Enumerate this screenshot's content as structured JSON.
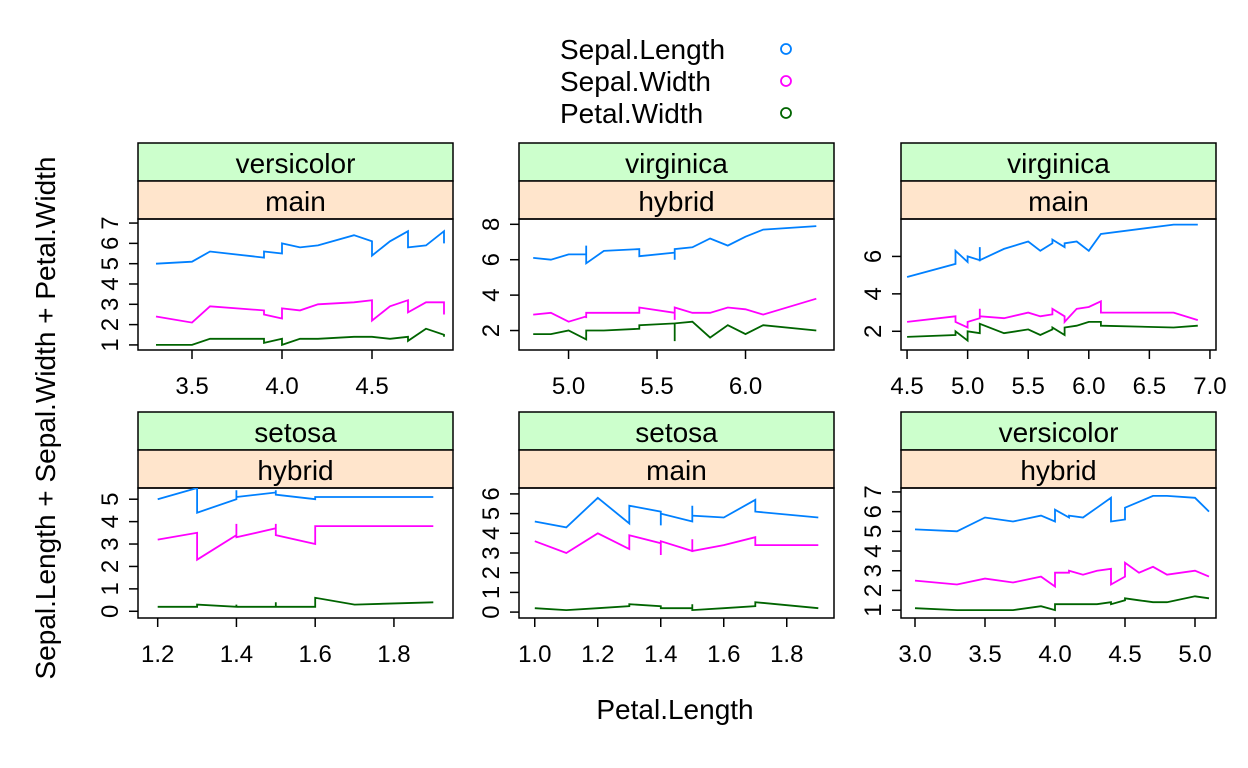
{
  "chart_data": {
    "type": "line",
    "xlabel": "Petal.Length",
    "ylabel": "Sepal.Length + Sepal.Width + Petal.Width",
    "legend": {
      "placement": "top-center",
      "entries": [
        {
          "name": "Sepal.Length",
          "color": "#0080ff"
        },
        {
          "name": "Sepal.Width",
          "color": "#ff00ff"
        },
        {
          "name": "Petal.Width",
          "color": "#006400"
        }
      ]
    },
    "strip_colors": {
      "species": "#ccffcc",
      "group": "#ffe5cc"
    },
    "panels": [
      {
        "species": "versicolor",
        "group": "main",
        "xlim": [
          3.2,
          4.95
        ],
        "xticks": [
          3.5,
          4.0,
          4.5
        ],
        "ylim": [
          0.75,
          7.2
        ],
        "yticks": [
          1,
          2,
          3,
          4,
          5,
          6,
          7
        ],
        "series": [
          {
            "name": "Sepal.Length",
            "x": [
              3.3,
              3.5,
              3.6,
              3.9,
              3.9,
              4.0,
              4.0,
              4.1,
              4.2,
              4.4,
              4.5,
              4.5,
              4.6,
              4.7,
              4.7,
              4.8,
              4.9,
              4.9
            ],
            "y": [
              5.0,
              5.1,
              5.6,
              5.3,
              5.6,
              5.5,
              6.0,
              5.8,
              5.9,
              6.4,
              6.1,
              5.4,
              6.1,
              6.6,
              5.8,
              5.9,
              6.6,
              6.0
            ]
          },
          {
            "name": "Sepal.Width",
            "x": [
              3.3,
              3.5,
              3.6,
              3.9,
              3.9,
              4.0,
              4.0,
              4.1,
              4.2,
              4.4,
              4.5,
              4.5,
              4.6,
              4.7,
              4.7,
              4.8,
              4.9,
              4.9
            ],
            "y": [
              2.4,
              2.1,
              2.9,
              2.7,
              2.5,
              2.3,
              2.8,
              2.7,
              3.0,
              3.1,
              3.2,
              2.2,
              2.9,
              3.2,
              2.6,
              3.1,
              3.1,
              2.5
            ]
          },
          {
            "name": "Petal.Width",
            "x": [
              3.3,
              3.5,
              3.6,
              3.9,
              3.9,
              4.0,
              4.0,
              4.1,
              4.2,
              4.4,
              4.5,
              4.5,
              4.6,
              4.7,
              4.7,
              4.8,
              4.9,
              4.9
            ],
            "y": [
              1.0,
              1.0,
              1.3,
              1.3,
              1.1,
              1.3,
              1.0,
              1.3,
              1.3,
              1.4,
              1.4,
              1.4,
              1.3,
              1.4,
              1.2,
              1.8,
              1.5,
              1.4
            ]
          }
        ]
      },
      {
        "species": "virginica",
        "group": "hybrid",
        "xlim": [
          4.72,
          6.5
        ],
        "xticks": [
          5.0,
          5.5,
          6.0
        ],
        "ylim": [
          0.9,
          8.3
        ],
        "yticks": [
          2,
          4,
          6,
          8
        ],
        "series": [
          {
            "name": "Sepal.Length",
            "x": [
              4.8,
              4.9,
              5.0,
              5.1,
              5.1,
              5.1,
              5.2,
              5.4,
              5.4,
              5.6,
              5.6,
              5.6,
              5.7,
              5.8,
              5.9,
              6.0,
              6.1,
              6.4
            ],
            "y": [
              6.1,
              6.0,
              6.3,
              6.3,
              6.8,
              5.8,
              6.5,
              6.6,
              6.2,
              6.4,
              6.0,
              6.6,
              6.7,
              7.2,
              6.8,
              7.3,
              7.7,
              7.9
            ]
          },
          {
            "name": "Sepal.Width",
            "x": [
              4.8,
              4.9,
              5.0,
              5.1,
              5.1,
              5.1,
              5.2,
              5.4,
              5.4,
              5.6,
              5.6,
              5.6,
              5.7,
              5.8,
              5.9,
              6.0,
              6.1,
              6.4
            ],
            "y": [
              2.9,
              3.0,
              2.5,
              2.8,
              2.7,
              3.0,
              3.0,
              3.0,
              3.3,
              3.0,
              2.6,
              3.3,
              3.0,
              3.0,
              3.3,
              3.2,
              2.9,
              3.8
            ]
          },
          {
            "name": "Petal.Width",
            "x": [
              4.8,
              4.9,
              5.0,
              5.1,
              5.1,
              5.1,
              5.2,
              5.4,
              5.4,
              5.6,
              5.6,
              5.6,
              5.7,
              5.8,
              5.9,
              6.0,
              6.1,
              6.4
            ],
            "y": [
              1.8,
              1.8,
              2.0,
              1.5,
              1.9,
              2.0,
              2.0,
              2.1,
              2.3,
              2.4,
              1.4,
              2.4,
              2.5,
              1.6,
              2.3,
              1.8,
              2.3,
              2.0
            ]
          }
        ]
      },
      {
        "species": "virginica",
        "group": "main",
        "xlim": [
          4.45,
          7.05
        ],
        "xticks": [
          4.5,
          5.0,
          5.5,
          6.0,
          6.5,
          7.0
        ],
        "ylim": [
          1.0,
          8.0
        ],
        "yticks": [
          2,
          4,
          6
        ],
        "series": [
          {
            "name": "Sepal.Length",
            "x": [
              4.5,
              4.9,
              4.9,
              5.0,
              5.0,
              5.1,
              5.1,
              5.1,
              5.3,
              5.5,
              5.6,
              5.7,
              5.7,
              5.8,
              5.8,
              5.9,
              6.0,
              6.1,
              6.1,
              6.7,
              6.9
            ],
            "y": [
              4.9,
              5.6,
              6.3,
              5.7,
              6.0,
              5.8,
              6.5,
              5.8,
              6.4,
              6.8,
              6.3,
              6.7,
              6.9,
              6.5,
              6.7,
              6.8,
              6.3,
              7.2,
              7.2,
              7.7,
              7.7
            ]
          },
          {
            "name": "Sepal.Width",
            "x": [
              4.5,
              4.9,
              4.9,
              5.0,
              5.0,
              5.1,
              5.1,
              5.1,
              5.3,
              5.5,
              5.6,
              5.7,
              5.7,
              5.8,
              5.8,
              5.9,
              6.0,
              6.1,
              6.1,
              6.7,
              6.9
            ],
            "y": [
              2.5,
              2.8,
              2.5,
              2.2,
              2.5,
              2.7,
              3.2,
              2.8,
              2.7,
              3.0,
              2.8,
              2.9,
              3.2,
              2.8,
              2.5,
              3.2,
              3.3,
              3.6,
              3.0,
              3.0,
              2.6
            ]
          },
          {
            "name": "Petal.Width",
            "x": [
              4.5,
              4.9,
              4.9,
              5.0,
              5.0,
              5.1,
              5.1,
              5.1,
              5.3,
              5.5,
              5.6,
              5.7,
              5.7,
              5.8,
              5.8,
              5.9,
              6.0,
              6.1,
              6.1,
              6.7,
              6.9
            ],
            "y": [
              1.7,
              1.8,
              2.0,
              1.5,
              2.0,
              1.9,
              2.3,
              2.4,
              1.9,
              2.1,
              1.8,
              2.1,
              2.2,
              1.8,
              2.2,
              2.3,
              2.5,
              2.5,
              2.3,
              2.2,
              2.3
            ]
          }
        ]
      },
      {
        "species": "setosa",
        "group": "hybrid",
        "xlim": [
          1.15,
          1.95
        ],
        "xticks": [
          1.2,
          1.4,
          1.6,
          1.8
        ],
        "ylim": [
          -0.3,
          5.5
        ],
        "yticks": [
          0,
          1,
          2,
          3,
          4,
          5
        ],
        "series": [
          {
            "name": "Sepal.Length",
            "x": [
              1.2,
              1.3,
              1.3,
              1.4,
              1.4,
              1.4,
              1.5,
              1.5,
              1.5,
              1.6,
              1.6,
              1.7,
              1.9
            ],
            "y": [
              5.0,
              5.5,
              4.4,
              5.0,
              5.4,
              5.1,
              5.3,
              5.4,
              5.2,
              5.0,
              5.1,
              5.1,
              5.1
            ]
          },
          {
            "name": "Sepal.Width",
            "x": [
              1.2,
              1.3,
              1.3,
              1.4,
              1.4,
              1.4,
              1.5,
              1.5,
              1.5,
              1.6,
              1.6,
              1.7,
              1.9
            ],
            "y": [
              3.2,
              3.5,
              2.3,
              3.4,
              3.9,
              3.3,
              3.7,
              3.9,
              3.4,
              3.0,
              3.8,
              3.8,
              3.8
            ]
          },
          {
            "name": "Petal.Width",
            "x": [
              1.2,
              1.3,
              1.3,
              1.4,
              1.4,
              1.4,
              1.5,
              1.5,
              1.5,
              1.6,
              1.6,
              1.7,
              1.9
            ],
            "y": [
              0.2,
              0.2,
              0.3,
              0.2,
              0.3,
              0.2,
              0.2,
              0.4,
              0.2,
              0.2,
              0.6,
              0.3,
              0.4
            ]
          }
        ]
      },
      {
        "species": "setosa",
        "group": "main",
        "xlim": [
          0.95,
          1.95
        ],
        "xticks": [
          1.0,
          1.2,
          1.4,
          1.6,
          1.8
        ],
        "ylim": [
          -0.3,
          6.3
        ],
        "yticks": [
          0,
          1,
          2,
          3,
          4,
          5,
          6
        ],
        "series": [
          {
            "name": "Sepal.Length",
            "x": [
              1.0,
              1.1,
              1.2,
              1.3,
              1.3,
              1.4,
              1.4,
              1.4,
              1.5,
              1.5,
              1.5,
              1.6,
              1.7,
              1.7,
              1.9
            ],
            "y": [
              4.6,
              4.3,
              5.8,
              4.5,
              5.4,
              5.1,
              4.4,
              5.0,
              4.6,
              5.4,
              4.9,
              4.8,
              5.7,
              5.1,
              4.8
            ]
          },
          {
            "name": "Sepal.Width",
            "x": [
              1.0,
              1.1,
              1.2,
              1.3,
              1.3,
              1.4,
              1.4,
              1.4,
              1.5,
              1.5,
              1.5,
              1.6,
              1.7,
              1.7,
              1.9
            ],
            "y": [
              3.6,
              3.0,
              4.0,
              3.2,
              3.9,
              3.5,
              2.9,
              3.6,
              3.1,
              3.7,
              3.1,
              3.4,
              3.8,
              3.4,
              3.4
            ]
          },
          {
            "name": "Petal.Width",
            "x": [
              1.0,
              1.1,
              1.2,
              1.3,
              1.3,
              1.4,
              1.4,
              1.4,
              1.5,
              1.5,
              1.5,
              1.6,
              1.7,
              1.7,
              1.9
            ],
            "y": [
              0.2,
              0.1,
              0.2,
              0.3,
              0.4,
              0.3,
              0.2,
              0.2,
              0.2,
              0.4,
              0.1,
              0.2,
              0.3,
              0.5,
              0.2
            ]
          }
        ]
      },
      {
        "species": "versicolor",
        "group": "hybrid",
        "xlim": [
          2.9,
          5.15
        ],
        "xticks": [
          3.0,
          3.5,
          4.0,
          4.5,
          5.0
        ],
        "ylim": [
          0.6,
          7.2
        ],
        "yticks": [
          1,
          2,
          3,
          4,
          5,
          6,
          7
        ],
        "series": [
          {
            "name": "Sepal.Length",
            "x": [
              3.0,
              3.3,
              3.5,
              3.7,
              3.9,
              4.0,
              4.0,
              4.1,
              4.1,
              4.2,
              4.3,
              4.4,
              4.4,
              4.5,
              4.5,
              4.6,
              4.7,
              4.8,
              5.0,
              5.1
            ],
            "y": [
              5.1,
              5.0,
              5.7,
              5.5,
              5.8,
              5.5,
              6.1,
              5.7,
              5.8,
              5.7,
              6.2,
              6.7,
              5.5,
              5.6,
              6.2,
              6.5,
              6.8,
              6.8,
              6.7,
              6.0
            ]
          },
          {
            "name": "Sepal.Width",
            "x": [
              3.0,
              3.3,
              3.5,
              3.7,
              3.9,
              4.0,
              4.0,
              4.1,
              4.1,
              4.2,
              4.3,
              4.4,
              4.4,
              4.5,
              4.5,
              4.6,
              4.7,
              4.8,
              5.0,
              5.1
            ],
            "y": [
              2.5,
              2.3,
              2.6,
              2.4,
              2.7,
              2.2,
              2.9,
              2.9,
              3.0,
              2.8,
              3.0,
              3.1,
              2.3,
              2.7,
              3.4,
              2.9,
              3.2,
              2.8,
              3.0,
              2.7
            ]
          },
          {
            "name": "Petal.Width",
            "x": [
              3.0,
              3.3,
              3.5,
              3.7,
              3.9,
              4.0,
              4.0,
              4.1,
              4.1,
              4.2,
              4.3,
              4.4,
              4.4,
              4.5,
              4.5,
              4.6,
              4.7,
              4.8,
              5.0,
              5.1
            ],
            "y": [
              1.1,
              1.0,
              1.0,
              1.0,
              1.2,
              1.0,
              1.3,
              1.3,
              1.3,
              1.3,
              1.3,
              1.4,
              1.3,
              1.5,
              1.6,
              1.5,
              1.4,
              1.4,
              1.7,
              1.6
            ]
          }
        ]
      }
    ]
  }
}
